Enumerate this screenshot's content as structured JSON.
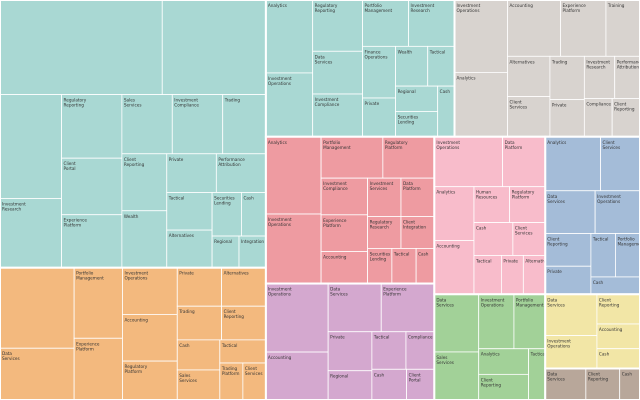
{
  "chart_data": {
    "type": "treemap",
    "title": "",
    "groups": [
      {
        "name": "",
        "color": "#a9d8d3",
        "children": [
          {
            "name": "",
            "value": 72
          },
          {
            "name": "",
            "value": 46
          },
          {
            "name": "",
            "value": 30
          },
          {
            "name": "Investment Research",
            "value": 20
          },
          {
            "name": "Client Portal",
            "value": 16
          },
          {
            "name": "Experience Platform",
            "value": 15
          },
          {
            "name": "Sales Services",
            "value": 14
          },
          {
            "name": "Trading",
            "value": 12
          },
          {
            "name": "Private",
            "value": 9
          },
          {
            "name": "Tactical",
            "value": 8
          },
          {
            "name": "Regulatory Reporting",
            "value": 18
          },
          {
            "name": "Investment Compliance",
            "value": 14
          },
          {
            "name": "Performance Attribution",
            "value": 9
          },
          {
            "name": "Client Reporting",
            "value": 12
          },
          {
            "name": "Alternatives",
            "value": 8
          },
          {
            "name": "Wealth",
            "value": 12
          },
          {
            "name": "Securities Lending",
            "value": 6
          },
          {
            "name": "Cash",
            "value": 5
          },
          {
            "name": "Regional",
            "value": 4
          },
          {
            "name": "Integration",
            "value": 4
          }
        ]
      },
      {
        "name": "",
        "color": "#f3b97e",
        "children": [
          {
            "name": "",
            "value": 28
          },
          {
            "name": "Data Services",
            "value": 18
          },
          {
            "name": "Portfolio Management",
            "value": 16
          },
          {
            "name": "Experience Platform",
            "value": 14
          },
          {
            "name": "Investment Operations",
            "value": 12
          },
          {
            "name": "Accounting",
            "value": 12
          },
          {
            "name": "Regulatory Platform",
            "value": 10
          },
          {
            "name": "Private",
            "value": 8
          },
          {
            "name": "Trading",
            "value": 7
          },
          {
            "name": "Cash",
            "value": 6
          },
          {
            "name": "Alternatives",
            "value": 8
          },
          {
            "name": "Client Reporting",
            "value": 7
          },
          {
            "name": "Sales Services",
            "value": 6
          },
          {
            "name": "Tactical",
            "value": 5
          },
          {
            "name": "Trading Platform",
            "value": 4
          },
          {
            "name": "Client Services",
            "value": 4
          }
        ]
      },
      {
        "name": "",
        "color": "#d8d3cf",
        "children": [
          {
            "name": "Analytics",
            "value": 16
          },
          {
            "name": "Investment Operations",
            "value": 18
          },
          {
            "name": "Accounting",
            "value": 14
          },
          {
            "name": "Experience Platform",
            "value": 12
          },
          {
            "name": "Training",
            "value": 9
          },
          {
            "name": "Alternatives",
            "value": 8
          },
          {
            "name": "Client Services",
            "value": 8
          },
          {
            "name": "Trading",
            "value": 7
          },
          {
            "name": "Private",
            "value": 6
          },
          {
            "name": "Investment Research",
            "value": 6
          },
          {
            "name": "Performance Attribution",
            "value": 5
          },
          {
            "name": "Compliance",
            "value": 5
          },
          {
            "name": "Client Reporting",
            "value": 5
          }
        ]
      },
      {
        "name": "",
        "color": "#ee9ba1",
        "children": [
          {
            "name": "Analytics",
            "value": 20
          },
          {
            "name": "Investment Operations",
            "value": 18
          },
          {
            "name": "Portfolio Management",
            "value": 12
          },
          {
            "name": "Regulatory Platform",
            "value": 10
          },
          {
            "name": "Investment Compliance",
            "value": 8
          },
          {
            "name": "Experience Platform",
            "value": 8
          },
          {
            "name": "Accounting",
            "value": 7
          },
          {
            "name": "Investment Services",
            "value": 6
          },
          {
            "name": "Data Platform",
            "value": 6
          },
          {
            "name": "Regulatory Research",
            "value": 5
          },
          {
            "name": "Client Integration",
            "value": 5
          },
          {
            "name": "Securities Lending",
            "value": 4
          },
          {
            "name": "Tactical",
            "value": 4
          },
          {
            "name": "Cash",
            "value": 3
          }
        ]
      },
      {
        "name": "",
        "color": "#a9d8d3",
        "children": [
          {
            "name": "Analytics",
            "value": 16
          },
          {
            "name": "Investment Operations",
            "value": 14
          },
          {
            "name": "Data Services",
            "value": 10
          },
          {
            "name": "Investment Compliance",
            "value": 10
          },
          {
            "name": "Private",
            "value": 6
          },
          {
            "name": "Regulatory Reporting",
            "value": 12
          },
          {
            "name": "Portfolio Management",
            "value": 10
          },
          {
            "name": "Wealth",
            "value": 6
          },
          {
            "name": "Tactical",
            "value": 5
          },
          {
            "name": "Regional",
            "value": 5
          },
          {
            "name": "Investment Research",
            "value": 10
          },
          {
            "name": "Finance Operations",
            "value": 8
          },
          {
            "name": "Securities Lending",
            "value": 5
          },
          {
            "name": "Cash",
            "value": 4
          }
        ]
      },
      {
        "name": "",
        "color": "#d4a8cf",
        "children": [
          {
            "name": "Investment Operations",
            "value": 20
          },
          {
            "name": "Accounting",
            "value": 14
          },
          {
            "name": "Data Services",
            "value": 12
          },
          {
            "name": "Experience Platform",
            "value": 12
          },
          {
            "name": "Private",
            "value": 8
          },
          {
            "name": "Regional",
            "value": 6
          },
          {
            "name": "Tactical",
            "value": 6
          },
          {
            "name": "Compliance",
            "value": 5
          },
          {
            "name": "Cash",
            "value": 5
          },
          {
            "name": "Client Portal",
            "value": 4
          }
        ]
      },
      {
        "name": "",
        "color": "#f8bccb",
        "children": [
          {
            "name": "Investment Operations",
            "value": 16
          },
          {
            "name": "Data Platform",
            "value": 10
          },
          {
            "name": "Analytics",
            "value": 10
          },
          {
            "name": "Accounting",
            "value": 10
          },
          {
            "name": "Human Resources",
            "value": 6
          },
          {
            "name": "Regulatory Platform",
            "value": 6
          },
          {
            "name": "Cash",
            "value": 6
          },
          {
            "name": "Client Services",
            "value": 5
          },
          {
            "name": "Tactical",
            "value": 5
          },
          {
            "name": "Private",
            "value": 4
          },
          {
            "name": "Alternatives",
            "value": 4
          }
        ]
      },
      {
        "name": "",
        "color": "#a4bcd8",
        "children": [
          {
            "name": "Analytics",
            "value": 14
          },
          {
            "name": "Client Services",
            "value": 10
          },
          {
            "name": "Data Services",
            "value": 10
          },
          {
            "name": "Investment Operations",
            "value": 9
          },
          {
            "name": "Client Reporting",
            "value": 7
          },
          {
            "name": "Private",
            "value": 6
          },
          {
            "name": "Tactical",
            "value": 5
          },
          {
            "name": "Portfolio Management",
            "value": 5
          },
          {
            "name": "Cash",
            "value": 4
          }
        ]
      },
      {
        "name": "",
        "color": "#a2d198",
        "children": [
          {
            "name": "Data Services",
            "value": 12
          },
          {
            "name": "Sales Services",
            "value": 10
          },
          {
            "name": "Investment Operations",
            "value": 9
          },
          {
            "name": "Portfolio Management",
            "value": 8
          },
          {
            "name": "Analytics",
            "value": 6
          },
          {
            "name": "Client Reporting",
            "value": 6
          },
          {
            "name": "Tactical",
            "value": 4
          }
        ]
      },
      {
        "name": "",
        "color": "#f2e6a6",
        "children": [
          {
            "name": "Data Services",
            "value": 10
          },
          {
            "name": "Investment Operations",
            "value": 8
          },
          {
            "name": "Client Reporting",
            "value": 6
          },
          {
            "name": "Accounting",
            "value": 5
          },
          {
            "name": "Cash",
            "value": 4
          }
        ]
      },
      {
        "name": "",
        "color": "#b8a79a",
        "children": [
          {
            "name": "Data Services",
            "value": 6
          },
          {
            "name": "Client Reporting",
            "value": 5
          },
          {
            "name": "Cash",
            "value": 3
          }
        ]
      }
    ]
  }
}
